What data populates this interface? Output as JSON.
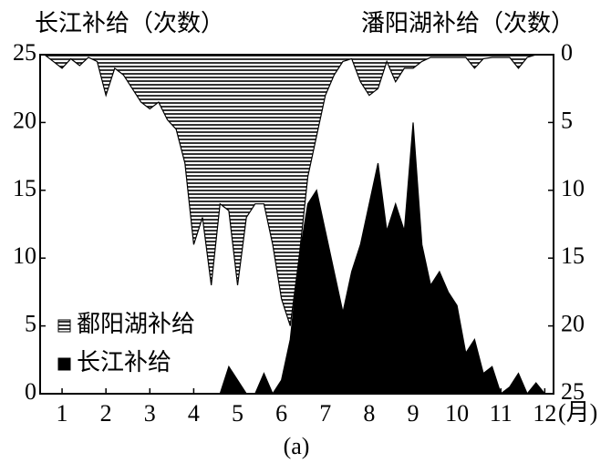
{
  "chart_data": {
    "type": "area",
    "ylabel": "长江补给（次数）",
    "y2label": "潘阳湖补给（次数）",
    "xlabel": "(月)",
    "caption": "(a)",
    "x": [
      0.6,
      0.8,
      1.0,
      1.2,
      1.4,
      1.6,
      1.8,
      2.0,
      2.2,
      2.4,
      2.6,
      2.8,
      3.0,
      3.2,
      3.4,
      3.6,
      3.8,
      4.0,
      4.2,
      4.4,
      4.6,
      4.8,
      5.0,
      5.2,
      5.4,
      5.6,
      5.8,
      6.0,
      6.2,
      6.4,
      6.6,
      6.8,
      7.0,
      7.2,
      7.4,
      7.6,
      7.8,
      8.0,
      8.2,
      8.4,
      8.6,
      8.8,
      9.0,
      9.2,
      9.4,
      9.6,
      9.8,
      10.0,
      10.2,
      10.4,
      10.6,
      10.8,
      11.0,
      11.2,
      11.4,
      11.6,
      11.8,
      12.0,
      12.2
    ],
    "series": [
      {
        "name": "鄱阳湖补给",
        "color": "#000000",
        "hatch": true,
        "axis": "y2",
        "values": [
          0,
          0.5,
          1,
          0.3,
          0.8,
          0.2,
          0.5,
          3,
          1,
          1.5,
          2.5,
          3.5,
          4,
          3.5,
          4.8,
          5.5,
          8,
          14,
          12,
          17,
          11,
          11.5,
          17,
          12,
          11,
          11,
          14,
          18,
          20,
          15,
          9,
          6,
          3,
          1.5,
          0.5,
          0.3,
          2,
          3,
          2.5,
          0.5,
          2,
          1,
          1,
          0.5,
          0.2,
          0.2,
          0.2,
          0.2,
          0.2,
          1,
          0.3,
          0.2,
          0.2,
          0.2,
          1,
          0.2,
          0,
          0,
          0
        ]
      },
      {
        "name": "长江补给",
        "color": "#000000",
        "hatch": false,
        "values": [
          0,
          0,
          0,
          0,
          0,
          0,
          0,
          0,
          0,
          0,
          0,
          0,
          0,
          0,
          0,
          0,
          0,
          0,
          0,
          0,
          0,
          2,
          1,
          0,
          0,
          1.5,
          0,
          1,
          4,
          10,
          14,
          15,
          12,
          9,
          6,
          9,
          11,
          14,
          17,
          12,
          14,
          12,
          20,
          11,
          8,
          9,
          7.5,
          6.5,
          3,
          4,
          1.5,
          2,
          0,
          0.5,
          1.5,
          0,
          0.8,
          0,
          0
        ]
      }
    ],
    "xlim": [
      0.5,
      12.2
    ],
    "xticks": [
      1,
      2,
      3,
      4,
      5,
      6,
      7,
      8,
      9,
      10,
      11,
      12
    ],
    "ylim": [
      0,
      25
    ],
    "yticks": [
      0,
      5,
      10,
      15,
      20,
      25
    ],
    "y2lim": [
      25,
      0
    ],
    "y2ticks": [
      0,
      5,
      10,
      15,
      20,
      25
    ]
  }
}
